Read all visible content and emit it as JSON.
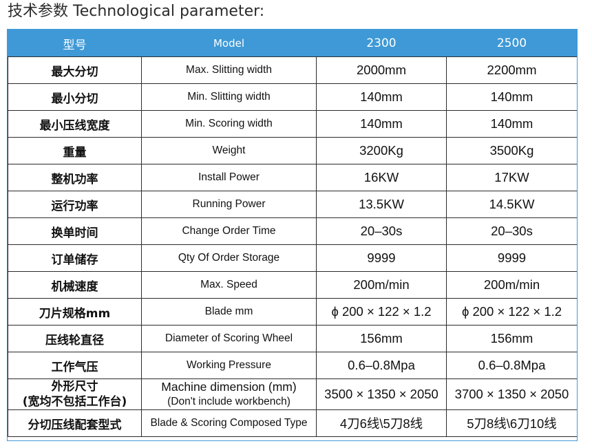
{
  "page": {
    "heading": "技术参数 Technological parameter:"
  },
  "table": {
    "header": {
      "cn": "型号",
      "en": "Model",
      "model_a": "2300",
      "model_b": "2500"
    },
    "rows": [
      {
        "cn": "最大分切",
        "en": "Max. Slitting width",
        "a": "2000mm",
        "b": "2200mm"
      },
      {
        "cn": "最小分切",
        "en": "Min. Slitting width",
        "a": "140mm",
        "b": "140mm"
      },
      {
        "cn": "最小压线宽度",
        "en": "Min. Scoring width",
        "a": "140mm",
        "b": "140mm"
      },
      {
        "cn": "重量",
        "en": "Weight",
        "a": "3200Kg",
        "b": "3500Kg"
      },
      {
        "cn": "整机功率",
        "en": "Install Power",
        "a": "16KW",
        "b": "17KW"
      },
      {
        "cn": "运行功率",
        "en": "Running Power",
        "a": "13.5KW",
        "b": "14.5KW"
      },
      {
        "cn": "换单时间",
        "en": "Change Order Time",
        "a": "20–30s",
        "b": "20–30s"
      },
      {
        "cn": "订单储存",
        "en": "Qty Of Order Storage",
        "a": "9999",
        "b": "9999"
      },
      {
        "cn": "机械速度",
        "en": "Max. Speed",
        "a": "200m/min",
        "b": "200m/min"
      },
      {
        "cn": "刀片规格mm",
        "en": "Blade mm",
        "a": "ϕ 200 × 122 × 1.2",
        "b": "ϕ 200 × 122 × 1.2"
      },
      {
        "cn": "压线轮直径",
        "en": "Diameter of Scoring Wheel",
        "a": "156mm",
        "b": "156mm"
      },
      {
        "cn": "工作气压",
        "en": "Working Pressure",
        "a": "0.6–0.8Mpa",
        "b": "0.6–0.8Mpa"
      }
    ],
    "dimension_row": {
      "cn_line1": "外形尺寸",
      "cn_line2": "(宽均不包括工作台)",
      "en_line1": "Machine dimension (mm)",
      "en_line2": "(Don't include workbench)",
      "a": "3500 × 1350 × 2050",
      "b": "3700 × 1350 × 2050"
    },
    "last_row": {
      "cn": "分切压线配套型式",
      "en": "Blade & Scoring Composed Type",
      "a": "4刀6线\\5刀8线",
      "b": "5刀8线\\6刀10线"
    }
  }
}
